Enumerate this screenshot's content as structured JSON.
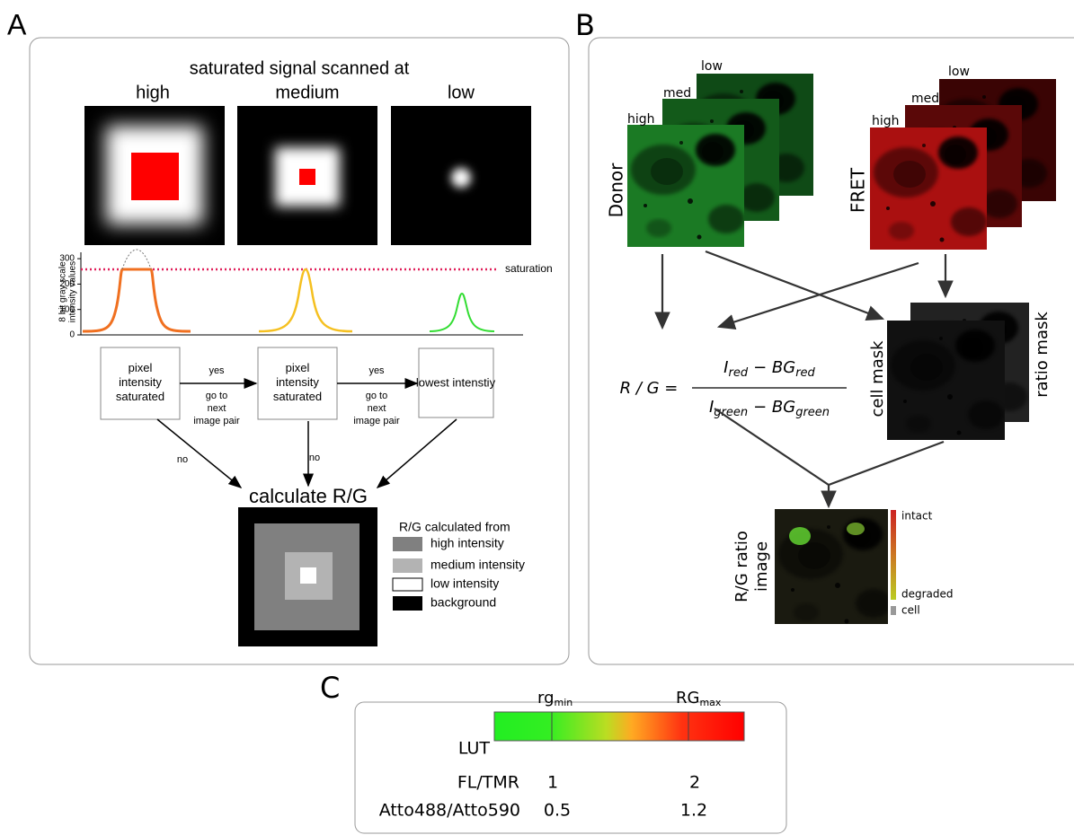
{
  "panels": {
    "A": {
      "letter": "A",
      "title": "saturated signal scanned at",
      "scan_levels": [
        "high",
        "medium",
        "low"
      ],
      "profile": {
        "y_label": [
          "8 bit gray scale",
          "intensity values"
        ],
        "yticks": [
          0,
          100,
          200,
          300
        ],
        "saturation_label": "saturation"
      },
      "flow": {
        "boxes": [
          [
            "pixel",
            "intensity",
            "saturated"
          ],
          [
            "pixel",
            "intensity",
            "saturated"
          ],
          [
            "lowest intenstiy"
          ]
        ],
        "yes": [
          "yes",
          "yes"
        ],
        "next": [
          [
            "go to",
            "next",
            "image pair"
          ],
          [
            "go to",
            "next",
            "image pair"
          ]
        ],
        "no": [
          "no",
          "no"
        ]
      },
      "result_title": "calculate R/G",
      "legend": {
        "title": "R/G calculated from",
        "items": [
          "high intensity",
          "medium intensity",
          "low intensity",
          "background"
        ]
      }
    },
    "B": {
      "letter": "B",
      "stack_levels": [
        "low",
        "med",
        "high"
      ],
      "donor": "Donor",
      "fret": "FRET",
      "formula": {
        "lhs": "R / G =",
        "numerator": [
          "I",
          "red",
          "− BG",
          "red"
        ],
        "denominator": [
          "I",
          "green",
          "− BG",
          "green"
        ]
      },
      "cell_mask": "cell mask",
      "ratio_mask": "ratio mask",
      "ratio_image": [
        "R/G ratio",
        "image"
      ],
      "colorbar": [
        "intact",
        "degraded",
        "cell"
      ]
    },
    "C": {
      "letter": "C",
      "lut": "LUT",
      "min": [
        "rg",
        "min"
      ],
      "max": [
        "RG",
        "max"
      ],
      "rows": [
        [
          "FL/TMR",
          1,
          2
        ],
        [
          "Atto488/Atto590",
          0.5,
          1.2
        ]
      ]
    }
  }
}
